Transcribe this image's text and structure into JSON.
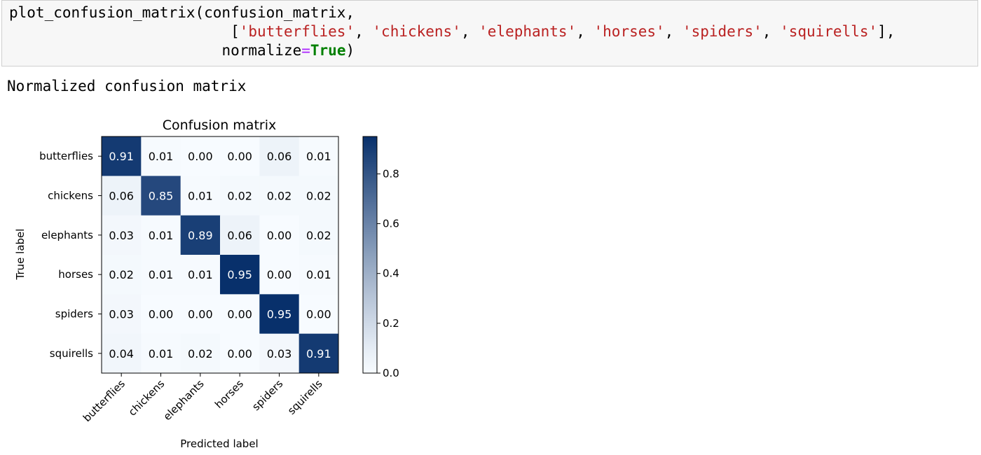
{
  "code": {
    "line1": {
      "fn": "plot_confusion_matrix(confusion_matrix,",
      "pad": ""
    },
    "line2": {
      "pad": "                         ",
      "open": "[",
      "items": [
        "'butterflies'",
        "'chickens'",
        "'elephants'",
        "'horses'",
        "'spiders'",
        "'squirells'"
      ],
      "sep": ", ",
      "close": "],"
    },
    "line3": {
      "pad": "                        ",
      "kwarg": "normalize",
      "eq": "=",
      "val": "True",
      "end": ")"
    }
  },
  "output_text": "Normalized confusion matrix",
  "colors": {
    "cmap_low": "#f7fbff",
    "cmap_high": "#08306b",
    "text_dark": "#000000",
    "text_light": "#ffffff"
  },
  "chart_data": {
    "type": "heatmap",
    "title": "Confusion matrix",
    "xlabel": "Predicted label",
    "ylabel": "True label",
    "rows": [
      "butterflies",
      "chickens",
      "elephants",
      "horses",
      "spiders",
      "squirells"
    ],
    "cols": [
      "butterflies",
      "chickens",
      "elephants",
      "horses",
      "spiders",
      "squirells"
    ],
    "values": [
      [
        0.91,
        0.01,
        0.0,
        0.0,
        0.06,
        0.01
      ],
      [
        0.06,
        0.85,
        0.01,
        0.02,
        0.02,
        0.02
      ],
      [
        0.03,
        0.01,
        0.89,
        0.06,
        0.0,
        0.02
      ],
      [
        0.02,
        0.01,
        0.01,
        0.95,
        0.0,
        0.01
      ],
      [
        0.03,
        0.0,
        0.0,
        0.0,
        0.95,
        0.0
      ],
      [
        0.04,
        0.01,
        0.02,
        0.0,
        0.03,
        0.91
      ]
    ],
    "colorbar": {
      "min": 0.0,
      "max": 0.95,
      "ticks": [
        "0.0",
        "0.2",
        "0.4",
        "0.6",
        "0.8"
      ]
    },
    "cmap": "Blues"
  }
}
